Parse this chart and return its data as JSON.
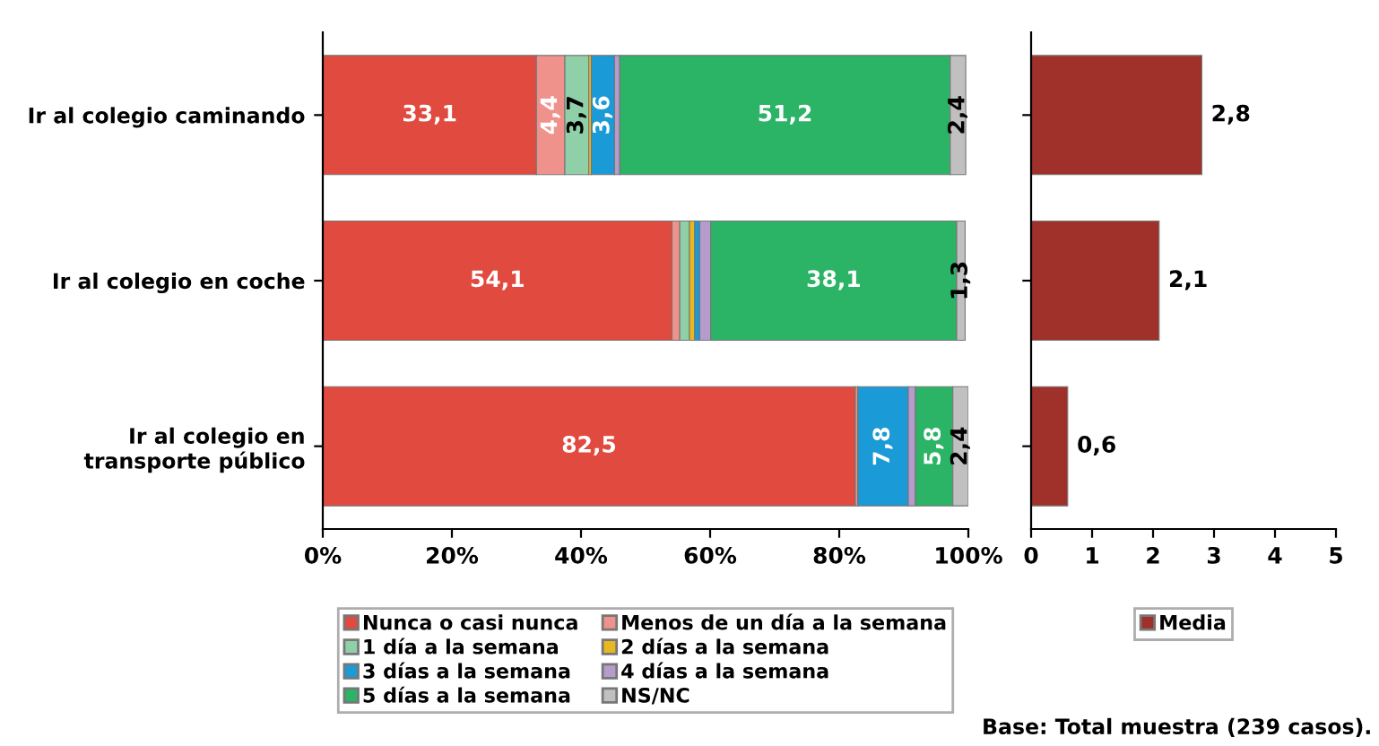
{
  "chart_data": [
    {
      "type": "bar",
      "orientation": "horizontal",
      "stacked": true,
      "categories": [
        "Ir al colegio caminando",
        "Ir al colegio en coche",
        "Ir al colegio en transporte público"
      ],
      "xlim": [
        0,
        100
      ],
      "xticks": [
        {
          "value": 0,
          "label": "0%"
        },
        {
          "value": 20,
          "label": "20%"
        },
        {
          "value": 40,
          "label": "40%"
        },
        {
          "value": 60,
          "label": "60%"
        },
        {
          "value": 80,
          "label": "80%"
        },
        {
          "value": 100,
          "label": "100%"
        }
      ],
      "legend": "bottom",
      "grid": false,
      "series": [
        {
          "name": "Nunca o casi nunca",
          "color": "#e04a3f",
          "values": [
            33.1,
            54.1,
            82.5
          ],
          "value_labels": [
            "33,1",
            "54,1",
            "82,5"
          ]
        },
        {
          "name": "Menos de un día a la semana",
          "color": "#f0928c",
          "values": [
            4.4,
            1.2,
            0.4
          ],
          "value_labels": [
            "4,4",
            null,
            null
          ]
        },
        {
          "name": "1 día a la semana",
          "color": "#8fd0a8",
          "values": [
            3.7,
            1.5,
            0
          ],
          "value_labels": [
            "3,7",
            null,
            null
          ]
        },
        {
          "name": "2 días a la semana",
          "color": "#e8b820",
          "values": [
            0.4,
            0.8,
            0
          ],
          "value_labels": [
            null,
            null,
            null
          ]
        },
        {
          "name": "3 días a la semana",
          "color": "#1a9ad6",
          "values": [
            3.6,
            0.8,
            7.8
          ],
          "value_labels": [
            "3,6",
            null,
            "7,8"
          ]
        },
        {
          "name": "4 días a la semana",
          "color": "#b59ccc",
          "values": [
            0.8,
            1.7,
            1.1
          ],
          "value_labels": [
            null,
            null,
            null
          ]
        },
        {
          "name": "5 días a la semana",
          "color": "#2bb366",
          "values": [
            51.2,
            38.1,
            5.8
          ],
          "value_labels": [
            "51,2",
            "38,1",
            "5,8"
          ]
        },
        {
          "name": "NS/NC",
          "color": "#c0c0c0",
          "values": [
            2.4,
            1.3,
            2.4
          ],
          "value_labels": [
            "2,4",
            "1,3",
            "2,4"
          ]
        }
      ]
    },
    {
      "type": "bar",
      "orientation": "horizontal",
      "categories": [
        null,
        null,
        null
      ],
      "xlim": [
        0,
        5
      ],
      "xticks": [
        0,
        1,
        2,
        3,
        4,
        5
      ],
      "legend": "bottom",
      "grid": false,
      "series": [
        {
          "name": "Media",
          "color": "#a0302a",
          "values": [
            2.8,
            2.1,
            0.6
          ],
          "value_labels": [
            "2,8",
            "2,1",
            "0,6"
          ]
        }
      ],
      "annotations": [
        "Base: Total muestra (239 casos)."
      ]
    }
  ]
}
